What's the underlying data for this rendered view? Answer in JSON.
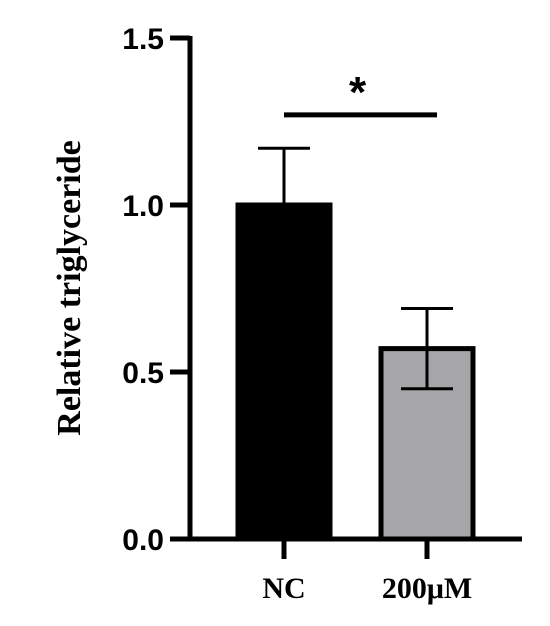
{
  "chart_data": {
    "type": "bar",
    "title": "",
    "xlabel": "",
    "ylabel": "Relative triglyceride",
    "ylim": [
      0,
      1.5
    ],
    "yticks": [
      0.0,
      0.5,
      1.0,
      1.5
    ],
    "ytick_labels": [
      "0.0",
      "0.5",
      "1.0",
      "1.5"
    ],
    "grid": false,
    "categories": [
      "NC",
      "200μM"
    ],
    "values": [
      1.0,
      0.57
    ],
    "error_upper": [
      1.17,
      0.69
    ],
    "error_lower": [
      1.0,
      0.45
    ],
    "bar_colors": [
      "#000000",
      "#a6a6a8"
    ],
    "significance": {
      "label": "*",
      "between": [
        "NC",
        "200μM"
      ],
      "bracket_y": 1.27
    }
  }
}
